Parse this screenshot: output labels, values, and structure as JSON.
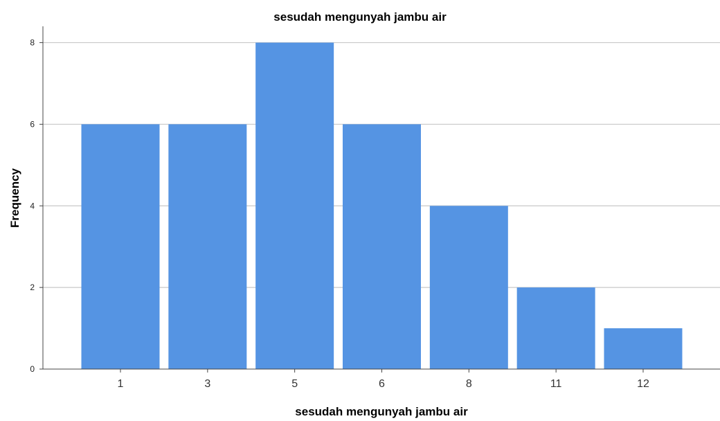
{
  "chart_data": {
    "type": "bar",
    "title": "sesudah mengunyah jambu air",
    "xlabel": "sesudah mengunyah jambu air",
    "ylabel": "Frequency",
    "categories": [
      "1",
      "3",
      "5",
      "6",
      "8",
      "11",
      "12"
    ],
    "values": [
      6,
      6,
      8,
      6,
      4,
      2,
      1
    ],
    "ylim": [
      0,
      8.4
    ],
    "yticks": [
      "0",
      "2",
      "4",
      "6",
      "8"
    ],
    "grid": true,
    "bar_color": "#5594e3"
  }
}
